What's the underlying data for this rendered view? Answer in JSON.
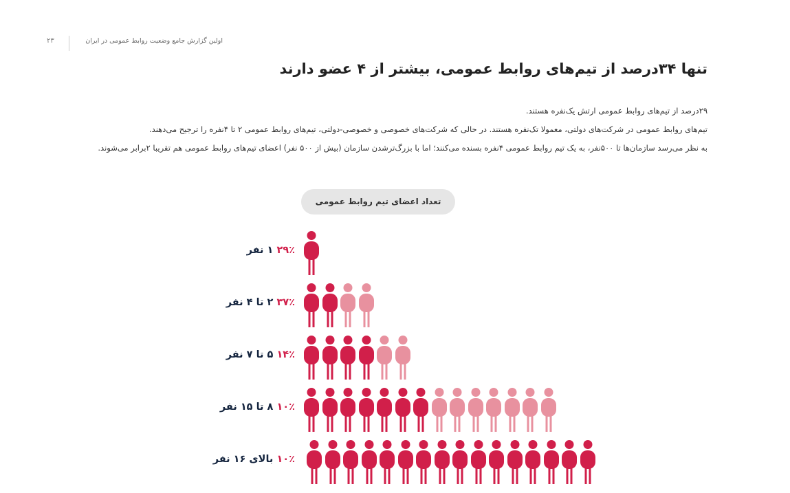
{
  "header": {
    "page_number": "۲۳",
    "report_name": "اولین گزارش جامع وضعیت روابط عمومی در ایران"
  },
  "title": "تنها ۳۴درصد از تیم‌های روابط عمومی، بیشتر از ۴ عضو دارند",
  "paragraphs": [
    "۲۹درصد از تیم‌های روابط عمومی ارتش یک‌نفره هستند.",
    "تیم‌های روابط عمومی در شرکت‌های دولتی، معمولا تک‌نفره هستند. در حالی که شرکت‌های خصوصی و خصوصی-دولتی، تیم‌های روابط عمومی ۲ تا ۴نفره را ترجیح می‌دهند.",
    "به نظر می‌رسد سازمان‌ها تا ۵۰۰نفر، به یک تیم روابط عمومی ۴نفره بسنده می‌کنند؛ اما با بزرگ‌ترشدن سازمان (بیش از ۵۰۰ نفر) اعضای تیم‌های روابط عمومی هم تقریبا ۲برابر می‌شوند."
  ],
  "chart": {
    "title": "تعداد اعضای تیم روابط عمومی",
    "colors": {
      "dark": "#d11f4a",
      "light": "#e8919f",
      "label_percent": "#d11f4a",
      "label_size": "#15253f"
    },
    "icon": "person-icon"
  },
  "chart_data": {
    "type": "pictograph",
    "title": "تعداد اعضای تیم روابط عمومی",
    "categories": [
      "۱ نفر",
      "۲ تا ۴ نفر",
      "۵ تا ۷ نفر",
      "۸ تا ۱۵ نفر",
      "بالای ۱۶ نفر"
    ],
    "values": [
      29,
      37,
      14,
      10,
      10
    ],
    "value_labels": [
      "۲۹٪",
      "۳۷٪",
      "۱۴٪",
      "۱۰٪",
      "۱۰٪"
    ],
    "rows": [
      {
        "percent_label": "۲۹٪",
        "size_label": "۱ نفر",
        "value": 29,
        "dark_count": 1,
        "light_count": 0
      },
      {
        "percent_label": "۳۷٪",
        "size_label": "۲ تا ۴ نفر",
        "value": 37,
        "dark_count": 2,
        "light_count": 2
      },
      {
        "percent_label": "۱۴٪",
        "size_label": "۵ تا ۷ نفر",
        "value": 14,
        "dark_count": 4,
        "light_count": 2
      },
      {
        "percent_label": "۱۰٪",
        "size_label": "۸ تا ۱۵ نفر",
        "value": 10,
        "dark_count": 7,
        "light_count": 7
      },
      {
        "percent_label": "۱۰٪",
        "size_label": "بالای ۱۶ نفر",
        "value": 10,
        "dark_count": 16,
        "light_count": 0
      }
    ]
  }
}
